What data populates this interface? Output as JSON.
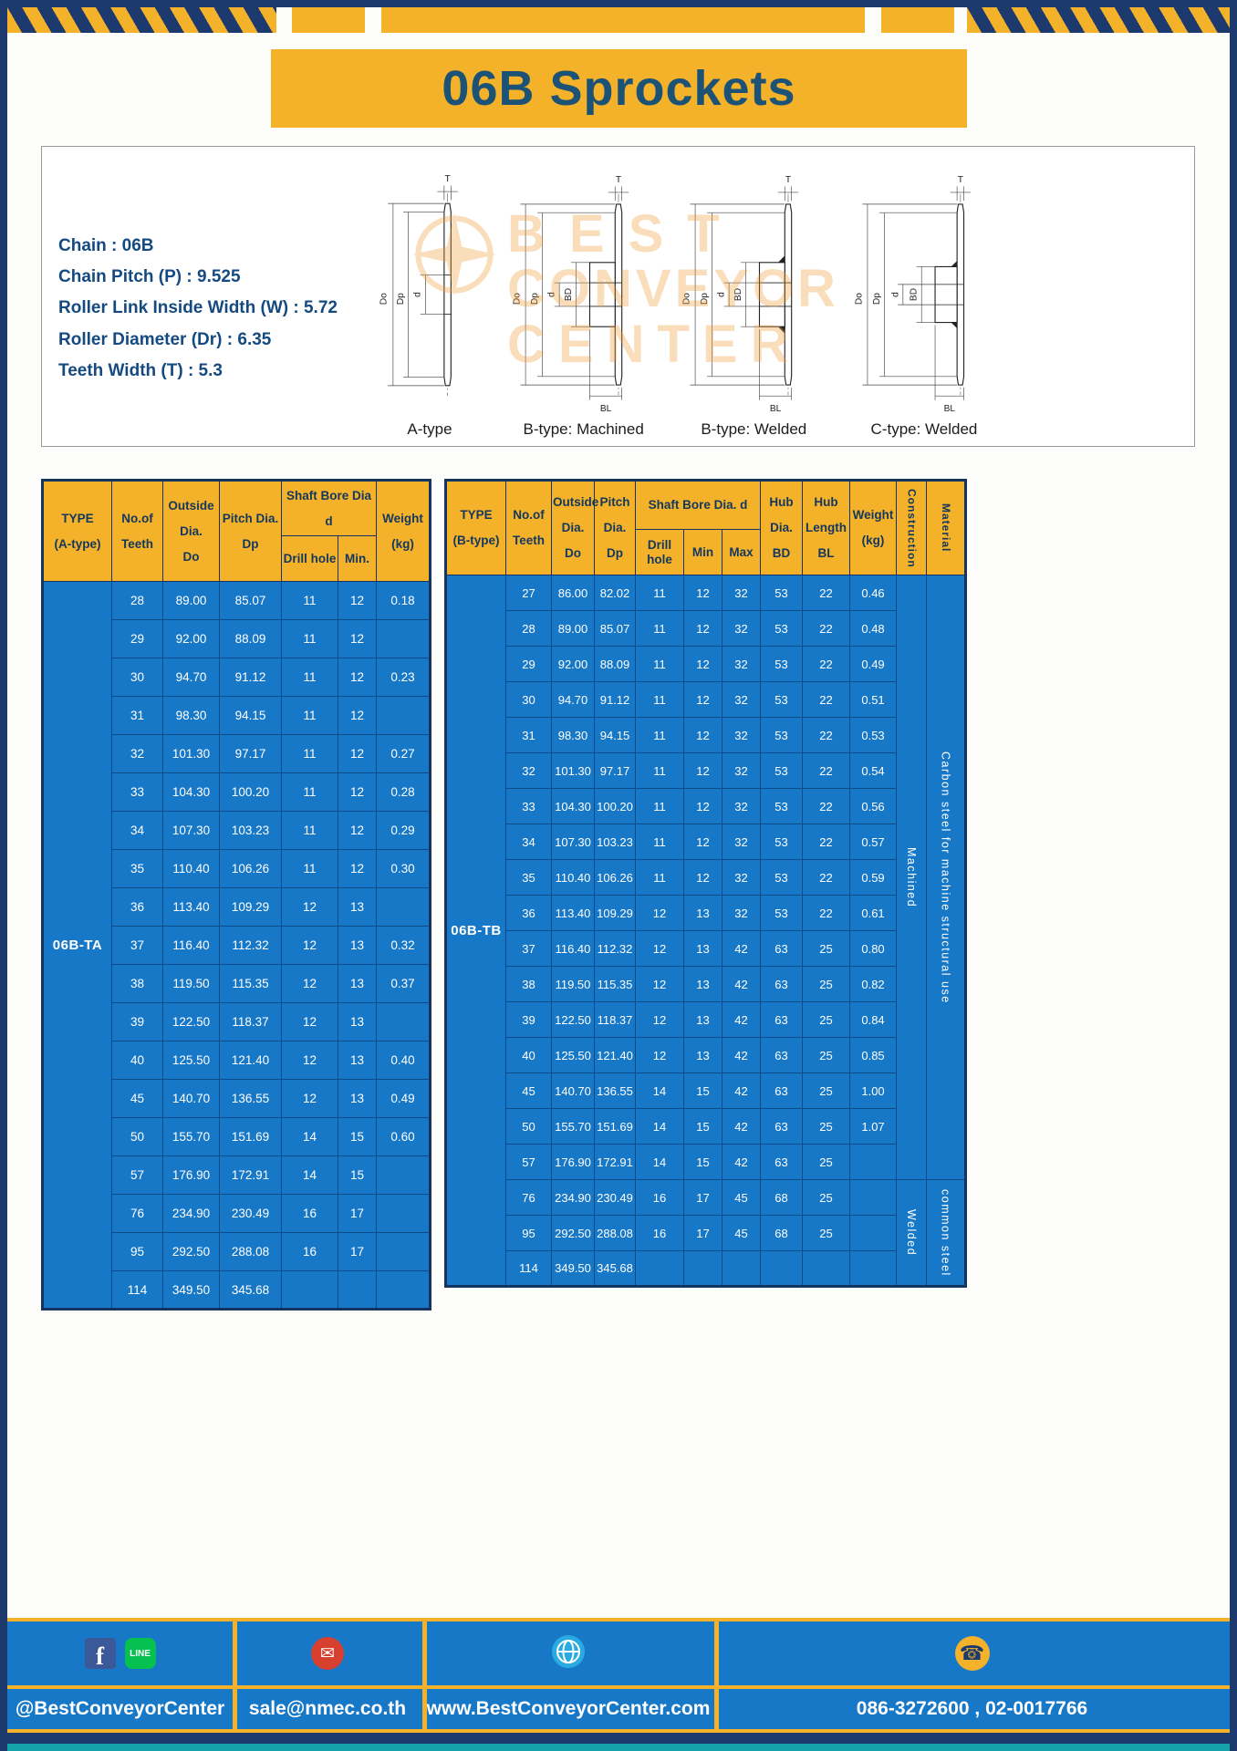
{
  "title": "06B Sprockets",
  "specs": {
    "chain": "Chain : 06B",
    "pitch": "Chain Pitch (P) : 9.525",
    "roller_width": "Roller Link Inside Width (W) : 5.72",
    "roller_dia": "Roller Diameter (Dr) : 6.35",
    "teeth_width": "Teeth Width (T) : 5.3"
  },
  "watermark": {
    "line1": "BEST",
    "line2": "CONVEYOR",
    "line3": "CENTER"
  },
  "drawings": {
    "captions": [
      "A-type",
      "B-type: Machined",
      "B-type: Welded",
      "C-type: Welded"
    ],
    "dims": {
      "t": "T",
      "outside": "Do",
      "pitch": "Dp",
      "bore": "d",
      "hub_dia": "BD",
      "hub_len": "BL"
    }
  },
  "table_a": {
    "header": {
      "type": "TYPE\n(A-type)",
      "teeth": "No.of\nTeeth",
      "outside": "Outside\nDia.\nDo",
      "pitch": "Pitch Dia.\nDp",
      "shaft_bore": "Shaft Bore Dia d",
      "drill": "Drill hole",
      "min": "Min.",
      "weight": "Weight\n(kg)"
    },
    "type_value": "06B-TA",
    "rows": [
      [
        "28",
        "89.00",
        "85.07",
        "11",
        "12",
        "0.18"
      ],
      [
        "29",
        "92.00",
        "88.09",
        "11",
        "12",
        ""
      ],
      [
        "30",
        "94.70",
        "91.12",
        "11",
        "12",
        "0.23"
      ],
      [
        "31",
        "98.30",
        "94.15",
        "11",
        "12",
        ""
      ],
      [
        "32",
        "101.30",
        "97.17",
        "11",
        "12",
        "0.27"
      ],
      [
        "33",
        "104.30",
        "100.20",
        "11",
        "12",
        "0.28"
      ],
      [
        "34",
        "107.30",
        "103.23",
        "11",
        "12",
        "0.29"
      ],
      [
        "35",
        "110.40",
        "106.26",
        "11",
        "12",
        "0.30"
      ],
      [
        "36",
        "113.40",
        "109.29",
        "12",
        "13",
        ""
      ],
      [
        "37",
        "116.40",
        "112.32",
        "12",
        "13",
        "0.32"
      ],
      [
        "38",
        "119.50",
        "115.35",
        "12",
        "13",
        "0.37"
      ],
      [
        "39",
        "122.50",
        "118.37",
        "12",
        "13",
        ""
      ],
      [
        "40",
        "125.50",
        "121.40",
        "12",
        "13",
        "0.40"
      ],
      [
        "45",
        "140.70",
        "136.55",
        "12",
        "13",
        "0.49"
      ],
      [
        "50",
        "155.70",
        "151.69",
        "14",
        "15",
        "0.60"
      ],
      [
        "57",
        "176.90",
        "172.91",
        "14",
        "15",
        ""
      ],
      [
        "76",
        "234.90",
        "230.49",
        "16",
        "17",
        ""
      ],
      [
        "95",
        "292.50",
        "288.08",
        "16",
        "17",
        ""
      ],
      [
        "114",
        "349.50",
        "345.68",
        "",
        "",
        ""
      ]
    ]
  },
  "table_b": {
    "header": {
      "type": "TYPE\n(B-type)",
      "teeth": "No.of\nTeeth",
      "outside": "Outside\nDia.\nDo",
      "pitch": "Pitch\nDia.\nDp",
      "shaft_bore": "Shaft Bore Dia. d",
      "drill": "Drill hole",
      "min": "Min",
      "max": "Max",
      "hub_dia": "Hub\nDia.\nBD",
      "hub_len": "Hub\nLength\nBL",
      "weight": "Weight\n(kg)",
      "construction": "Construction",
      "material": "Material"
    },
    "type_value": "06B-TB",
    "rows": [
      [
        "27",
        "86.00",
        "82.02",
        "11",
        "12",
        "32",
        "53",
        "22",
        "0.46"
      ],
      [
        "28",
        "89.00",
        "85.07",
        "11",
        "12",
        "32",
        "53",
        "22",
        "0.48"
      ],
      [
        "29",
        "92.00",
        "88.09",
        "11",
        "12",
        "32",
        "53",
        "22",
        "0.49"
      ],
      [
        "30",
        "94.70",
        "91.12",
        "11",
        "12",
        "32",
        "53",
        "22",
        "0.51"
      ],
      [
        "31",
        "98.30",
        "94.15",
        "11",
        "12",
        "32",
        "53",
        "22",
        "0.53"
      ],
      [
        "32",
        "101.30",
        "97.17",
        "11",
        "12",
        "32",
        "53",
        "22",
        "0.54"
      ],
      [
        "33",
        "104.30",
        "100.20",
        "11",
        "12",
        "32",
        "53",
        "22",
        "0.56"
      ],
      [
        "34",
        "107.30",
        "103.23",
        "11",
        "12",
        "32",
        "53",
        "22",
        "0.57"
      ],
      [
        "35",
        "110.40",
        "106.26",
        "11",
        "12",
        "32",
        "53",
        "22",
        "0.59"
      ],
      [
        "36",
        "113.40",
        "109.29",
        "12",
        "13",
        "32",
        "53",
        "22",
        "0.61"
      ],
      [
        "37",
        "116.40",
        "112.32",
        "12",
        "13",
        "42",
        "63",
        "25",
        "0.80"
      ],
      [
        "38",
        "119.50",
        "115.35",
        "12",
        "13",
        "42",
        "63",
        "25",
        "0.82"
      ],
      [
        "39",
        "122.50",
        "118.37",
        "12",
        "13",
        "42",
        "63",
        "25",
        "0.84"
      ],
      [
        "40",
        "125.50",
        "121.40",
        "12",
        "13",
        "42",
        "63",
        "25",
        "0.85"
      ],
      [
        "45",
        "140.70",
        "136.55",
        "14",
        "15",
        "42",
        "63",
        "25",
        "1.00"
      ],
      [
        "50",
        "155.70",
        "151.69",
        "14",
        "15",
        "42",
        "63",
        "25",
        "1.07"
      ],
      [
        "57",
        "176.90",
        "172.91",
        "14",
        "15",
        "42",
        "63",
        "25",
        ""
      ],
      [
        "76",
        "234.90",
        "230.49",
        "16",
        "17",
        "45",
        "68",
        "25",
        ""
      ],
      [
        "95",
        "292.50",
        "288.08",
        "16",
        "17",
        "45",
        "68",
        "25",
        ""
      ],
      [
        "114",
        "349.50",
        "345.68",
        "",
        "",
        "",
        "",
        "",
        ""
      ]
    ],
    "construction_groups": [
      {
        "label": "Machined",
        "rows": 17
      },
      {
        "label": "Welded",
        "rows": 3
      }
    ],
    "material_groups": [
      {
        "label": "Carbon steel for machine structural use",
        "rows": 17
      },
      {
        "label": "common steel",
        "rows": 3
      }
    ]
  },
  "footer": {
    "social": "@BestConveyorCenter",
    "email": "sale@nmec.co.th",
    "website": "www.BestConveyorCenter.com",
    "phone": "086-3272600 , 02-0017766",
    "icons": {
      "facebook": "f",
      "line": "LINE",
      "email": "✉",
      "phone": "☎"
    }
  }
}
